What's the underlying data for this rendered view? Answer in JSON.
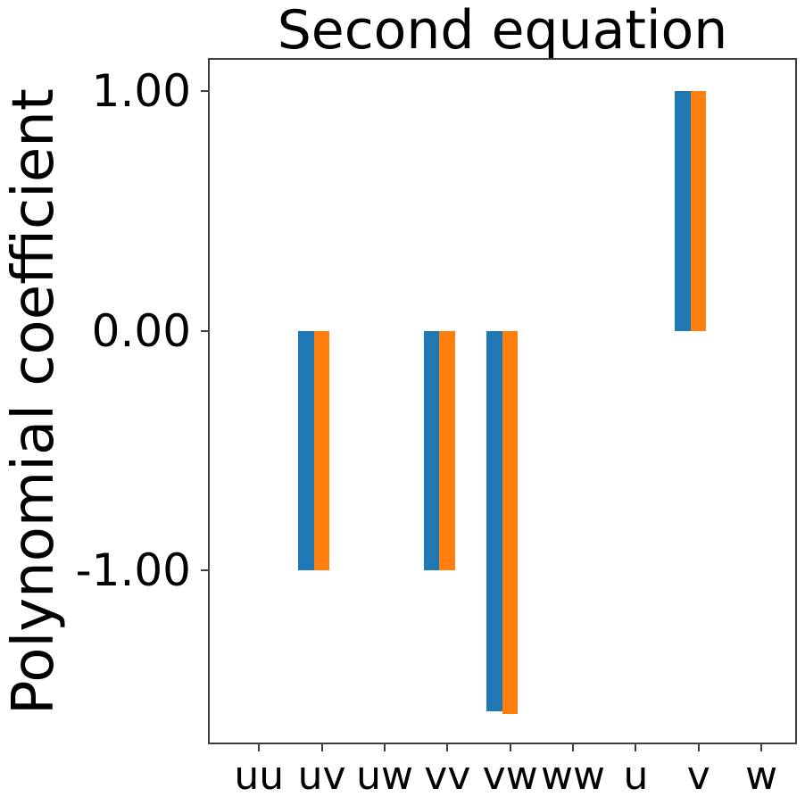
{
  "figure": {
    "background": "#ffffff"
  },
  "chart_data": {
    "type": "bar",
    "title": "Second equation",
    "xlabel": "",
    "ylabel": "Polynomial coefficient",
    "categories": [
      "uu",
      "uv",
      "uw",
      "vv",
      "vw",
      "ww",
      "u",
      "v",
      "w"
    ],
    "series": [
      {
        "name": "blue",
        "color": "#1f77b4",
        "values": [
          0,
          -1,
          0,
          -1,
          -1.59,
          0,
          0,
          1,
          0
        ]
      },
      {
        "name": "orange",
        "color": "#ff7f0e",
        "values": [
          0,
          -1,
          0,
          -1,
          -1.6,
          0,
          0,
          1,
          0
        ]
      }
    ],
    "yticks": [
      {
        "value": 1,
        "label": "1.00"
      },
      {
        "value": 0,
        "label": "0.00"
      },
      {
        "value": -1,
        "label": "-1.00"
      }
    ],
    "ylim": [
      -1.72,
      1.14
    ],
    "grid": false,
    "legend": null,
    "axis_color": "#3f3f3f",
    "text_color": "#000000"
  }
}
